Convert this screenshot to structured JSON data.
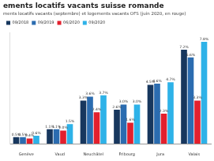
{
  "chart_data": {
    "type": "bar",
    "title": "ements locatifs vacants suisse romande",
    "subtitle": "ments locatifs vacants (septembre) et logements vacants OFS (juin 2020, en rouge)",
    "categories": [
      "Genève",
      "Vaud",
      "Neuchâtel",
      "Fribourg",
      "Jura",
      "Valais"
    ],
    "series": [
      {
        "name": "09/2018",
        "color": "#17375e",
        "values": [
          0.5,
          1.1,
          3.3,
          2.6,
          4.5,
          7.2
        ],
        "value_labels": [
          "0.5%",
          "1.1%",
          "3.3%",
          "2.6%",
          "4.5%",
          "7.2%"
        ]
      },
      {
        "name": "09/2019",
        "color": "#2b6cb0",
        "values": [
          0.5,
          1.1,
          3.6,
          3.0,
          4.6,
          6.6
        ],
        "value_labels": [
          "0.5%",
          "1.1%",
          "3.6%",
          "3.0%",
          "4.6%",
          "6.6%"
        ]
      },
      {
        "name": "06/2020",
        "color": "#e3202d",
        "values": [
          0.4,
          1.0,
          2.4,
          1.6,
          2.3,
          3.3
        ],
        "value_labels": [
          "0.4%",
          "1.0%",
          "2.4%",
          "1.6%",
          "2.3%",
          "3.3%"
        ]
      },
      {
        "name": "09/2020",
        "color": "#2eb2e8",
        "values": [
          0.6,
          1.5,
          3.7,
          3.0,
          4.7,
          7.8
        ],
        "value_labels": [
          "0.6%",
          "1.5%",
          "3.7%",
          "3.0%",
          "4.7%",
          "7.8%"
        ]
      }
    ],
    "ylim": [
      0,
      8.5
    ],
    "grid": false,
    "legend": "top-left",
    "data_labels": true,
    "tick_labels": "x"
  }
}
